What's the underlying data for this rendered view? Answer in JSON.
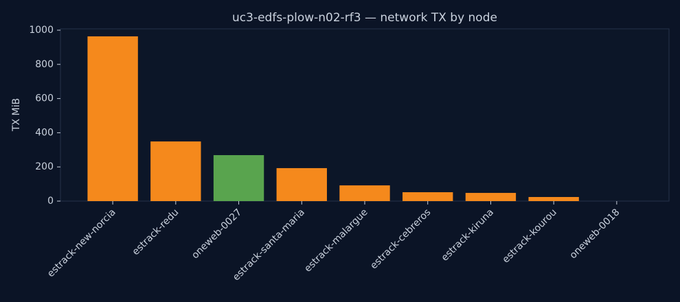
{
  "chart_data": {
    "type": "bar",
    "title": "uc3-edfs-plow-n02-rf3 — network TX by node",
    "y_label": "TX MiB",
    "categories": [
      "estrack-new-norcia",
      "estrack-redu",
      "oneweb-0027",
      "estrack-santa-maria",
      "estrack-malargue",
      "estrack-cebreros",
      "estrack-kiruna",
      "estrack-kourou",
      "oneweb-0018"
    ],
    "values": [
      964,
      349,
      269,
      193,
      92,
      52,
      48,
      24,
      0
    ],
    "colors": [
      "#f5891c",
      "#f5891c",
      "#59a44e",
      "#f5891c",
      "#f5891c",
      "#f5891c",
      "#f5891c",
      "#f5891c",
      "#f5891c"
    ],
    "ylim": [
      0,
      1000
    ],
    "yticks": [
      0,
      200,
      400,
      600,
      800,
      1000
    ],
    "grid": false
  }
}
